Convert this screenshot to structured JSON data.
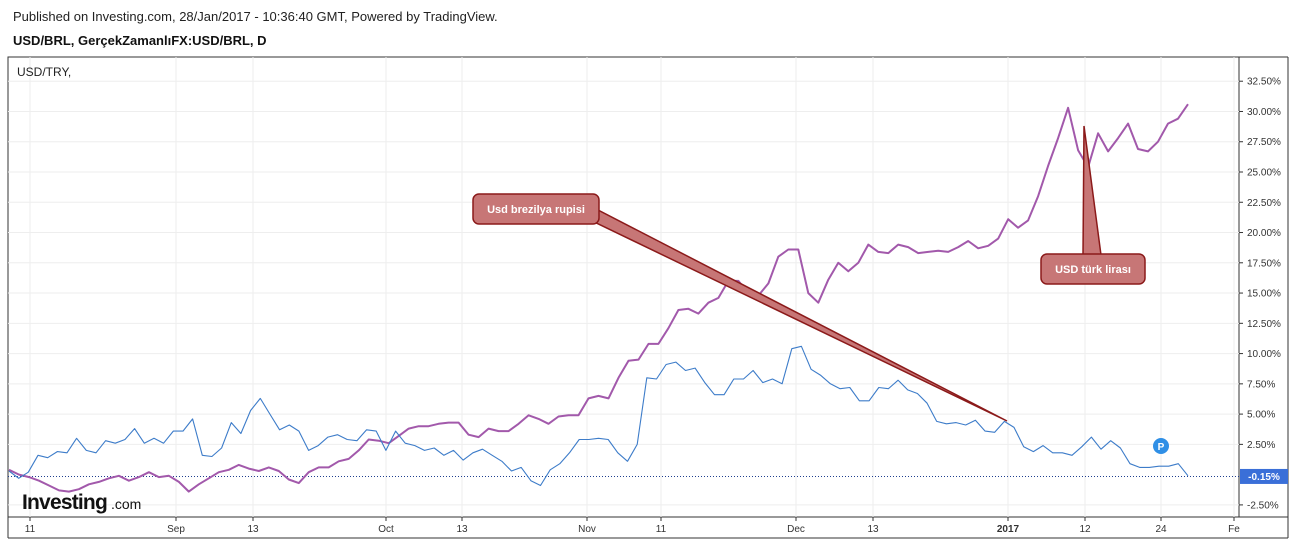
{
  "header": {
    "published": "Published on Investing.com, 28/Jan/2017 - 10:36:40 GMT, Powered by TradingView.",
    "symbol": "USD/BRL, GerçekZamanlıFX:USD/BRL, D"
  },
  "chart_data": {
    "type": "line",
    "title": "USD/TRY,",
    "y_unit": "%",
    "ylim": [
      -3.5,
      34.5
    ],
    "y_ticks": [
      "32.50%",
      "30.00%",
      "27.50%",
      "25.00%",
      "22.50%",
      "20.00%",
      "17.50%",
      "15.00%",
      "12.50%",
      "10.00%",
      "7.50%",
      "5.00%",
      "2.50%",
      "-2.50%"
    ],
    "current_value_label": "-0.15%",
    "x_tick_labels": [
      "11",
      "Sep",
      "13",
      "Oct",
      "13",
      "Nov",
      "11",
      "Dec",
      "13",
      "2017",
      "12",
      "24",
      "Fe"
    ],
    "grid": true,
    "series": [
      {
        "color": "#a259ab",
        "values": [
          0.4,
          0.0,
          -0.2,
          -0.5,
          -0.9,
          -1.3,
          -1.4,
          -1.2,
          -0.8,
          -0.6,
          -0.3,
          -0.1,
          -0.5,
          -0.2,
          0.2,
          -0.2,
          -0.1,
          -0.6,
          -1.4,
          -0.8,
          -0.3,
          0.2,
          0.4,
          0.8,
          0.5,
          0.3,
          0.6,
          0.3,
          -0.4,
          -0.7,
          0.2,
          0.6,
          0.6,
          1.1,
          1.3,
          2.0,
          2.9,
          2.8,
          2.6,
          3.2,
          3.8,
          4.0,
          4.0,
          4.2,
          4.3,
          4.3,
          3.3,
          3.1,
          3.8,
          3.6,
          3.6,
          4.2,
          4.9,
          4.6,
          4.2,
          4.8,
          4.9,
          4.9,
          6.3,
          6.5,
          6.3,
          8.0,
          9.4,
          9.5,
          10.8,
          10.8,
          12.1,
          13.6,
          13.7,
          13.3,
          14.2,
          14.6,
          16.0,
          16.0,
          15.0,
          14.8,
          15.8,
          18.0,
          18.6,
          18.6,
          15.0,
          14.2,
          16.1,
          17.5,
          16.8,
          17.5,
          19.0,
          18.4,
          18.3,
          19.0,
          18.8,
          18.3,
          18.4,
          18.5,
          18.4,
          18.8,
          19.3,
          18.7,
          18.9,
          19.5,
          21.1,
          20.4,
          21.0,
          23.0,
          25.5,
          27.8,
          30.3,
          26.8,
          25.4,
          28.2,
          26.7,
          27.8,
          29.0,
          26.9,
          26.7,
          27.5,
          29.0,
          29.4,
          30.6
        ]
      },
      {
        "color": "#3d7cc9",
        "values": [
          0.3,
          -0.3,
          0.2,
          1.6,
          1.4,
          1.9,
          1.8,
          3.0,
          2.0,
          1.8,
          2.8,
          2.6,
          2.9,
          3.8,
          2.6,
          3.0,
          2.6,
          3.6,
          3.6,
          4.6,
          1.6,
          1.5,
          2.2,
          4.3,
          3.4,
          5.3,
          6.3,
          5.0,
          3.7,
          4.1,
          3.6,
          2.0,
          2.4,
          3.1,
          3.3,
          2.9,
          2.8,
          3.7,
          3.6,
          2.0,
          3.6,
          2.6,
          2.4,
          2.0,
          2.2,
          1.6,
          2.0,
          1.2,
          1.8,
          2.1,
          1.6,
          1.1,
          0.3,
          0.6,
          -0.5,
          -0.9,
          0.4,
          0.9,
          1.8,
          2.9,
          2.9,
          3.0,
          2.9,
          1.8,
          1.1,
          2.5,
          8.0,
          7.9,
          9.1,
          9.3,
          8.6,
          8.8,
          7.6,
          6.6,
          6.6,
          7.9,
          7.9,
          8.6,
          7.6,
          7.9,
          7.5,
          10.4,
          10.6,
          8.7,
          8.2,
          7.5,
          7.1,
          7.2,
          6.1,
          6.1,
          7.2,
          7.1,
          7.8,
          7.0,
          6.7,
          5.9,
          4.4,
          4.2,
          4.3,
          4.1,
          4.5,
          3.6,
          3.5,
          4.4,
          3.9,
          2.3,
          1.9,
          2.4,
          1.8,
          1.8,
          1.6,
          2.3,
          3.1,
          2.1,
          2.8,
          2.2,
          0.9,
          0.6,
          0.6,
          0.7,
          0.7,
          0.9,
          -0.1
        ]
      }
    ],
    "annotations": [
      {
        "text": "Usd brezilya rupisi"
      },
      {
        "text": "USD türk lirası"
      }
    ]
  },
  "watermark": {
    "brand": "Investing",
    "suffix": ".com"
  },
  "marker": {
    "label": "P"
  }
}
